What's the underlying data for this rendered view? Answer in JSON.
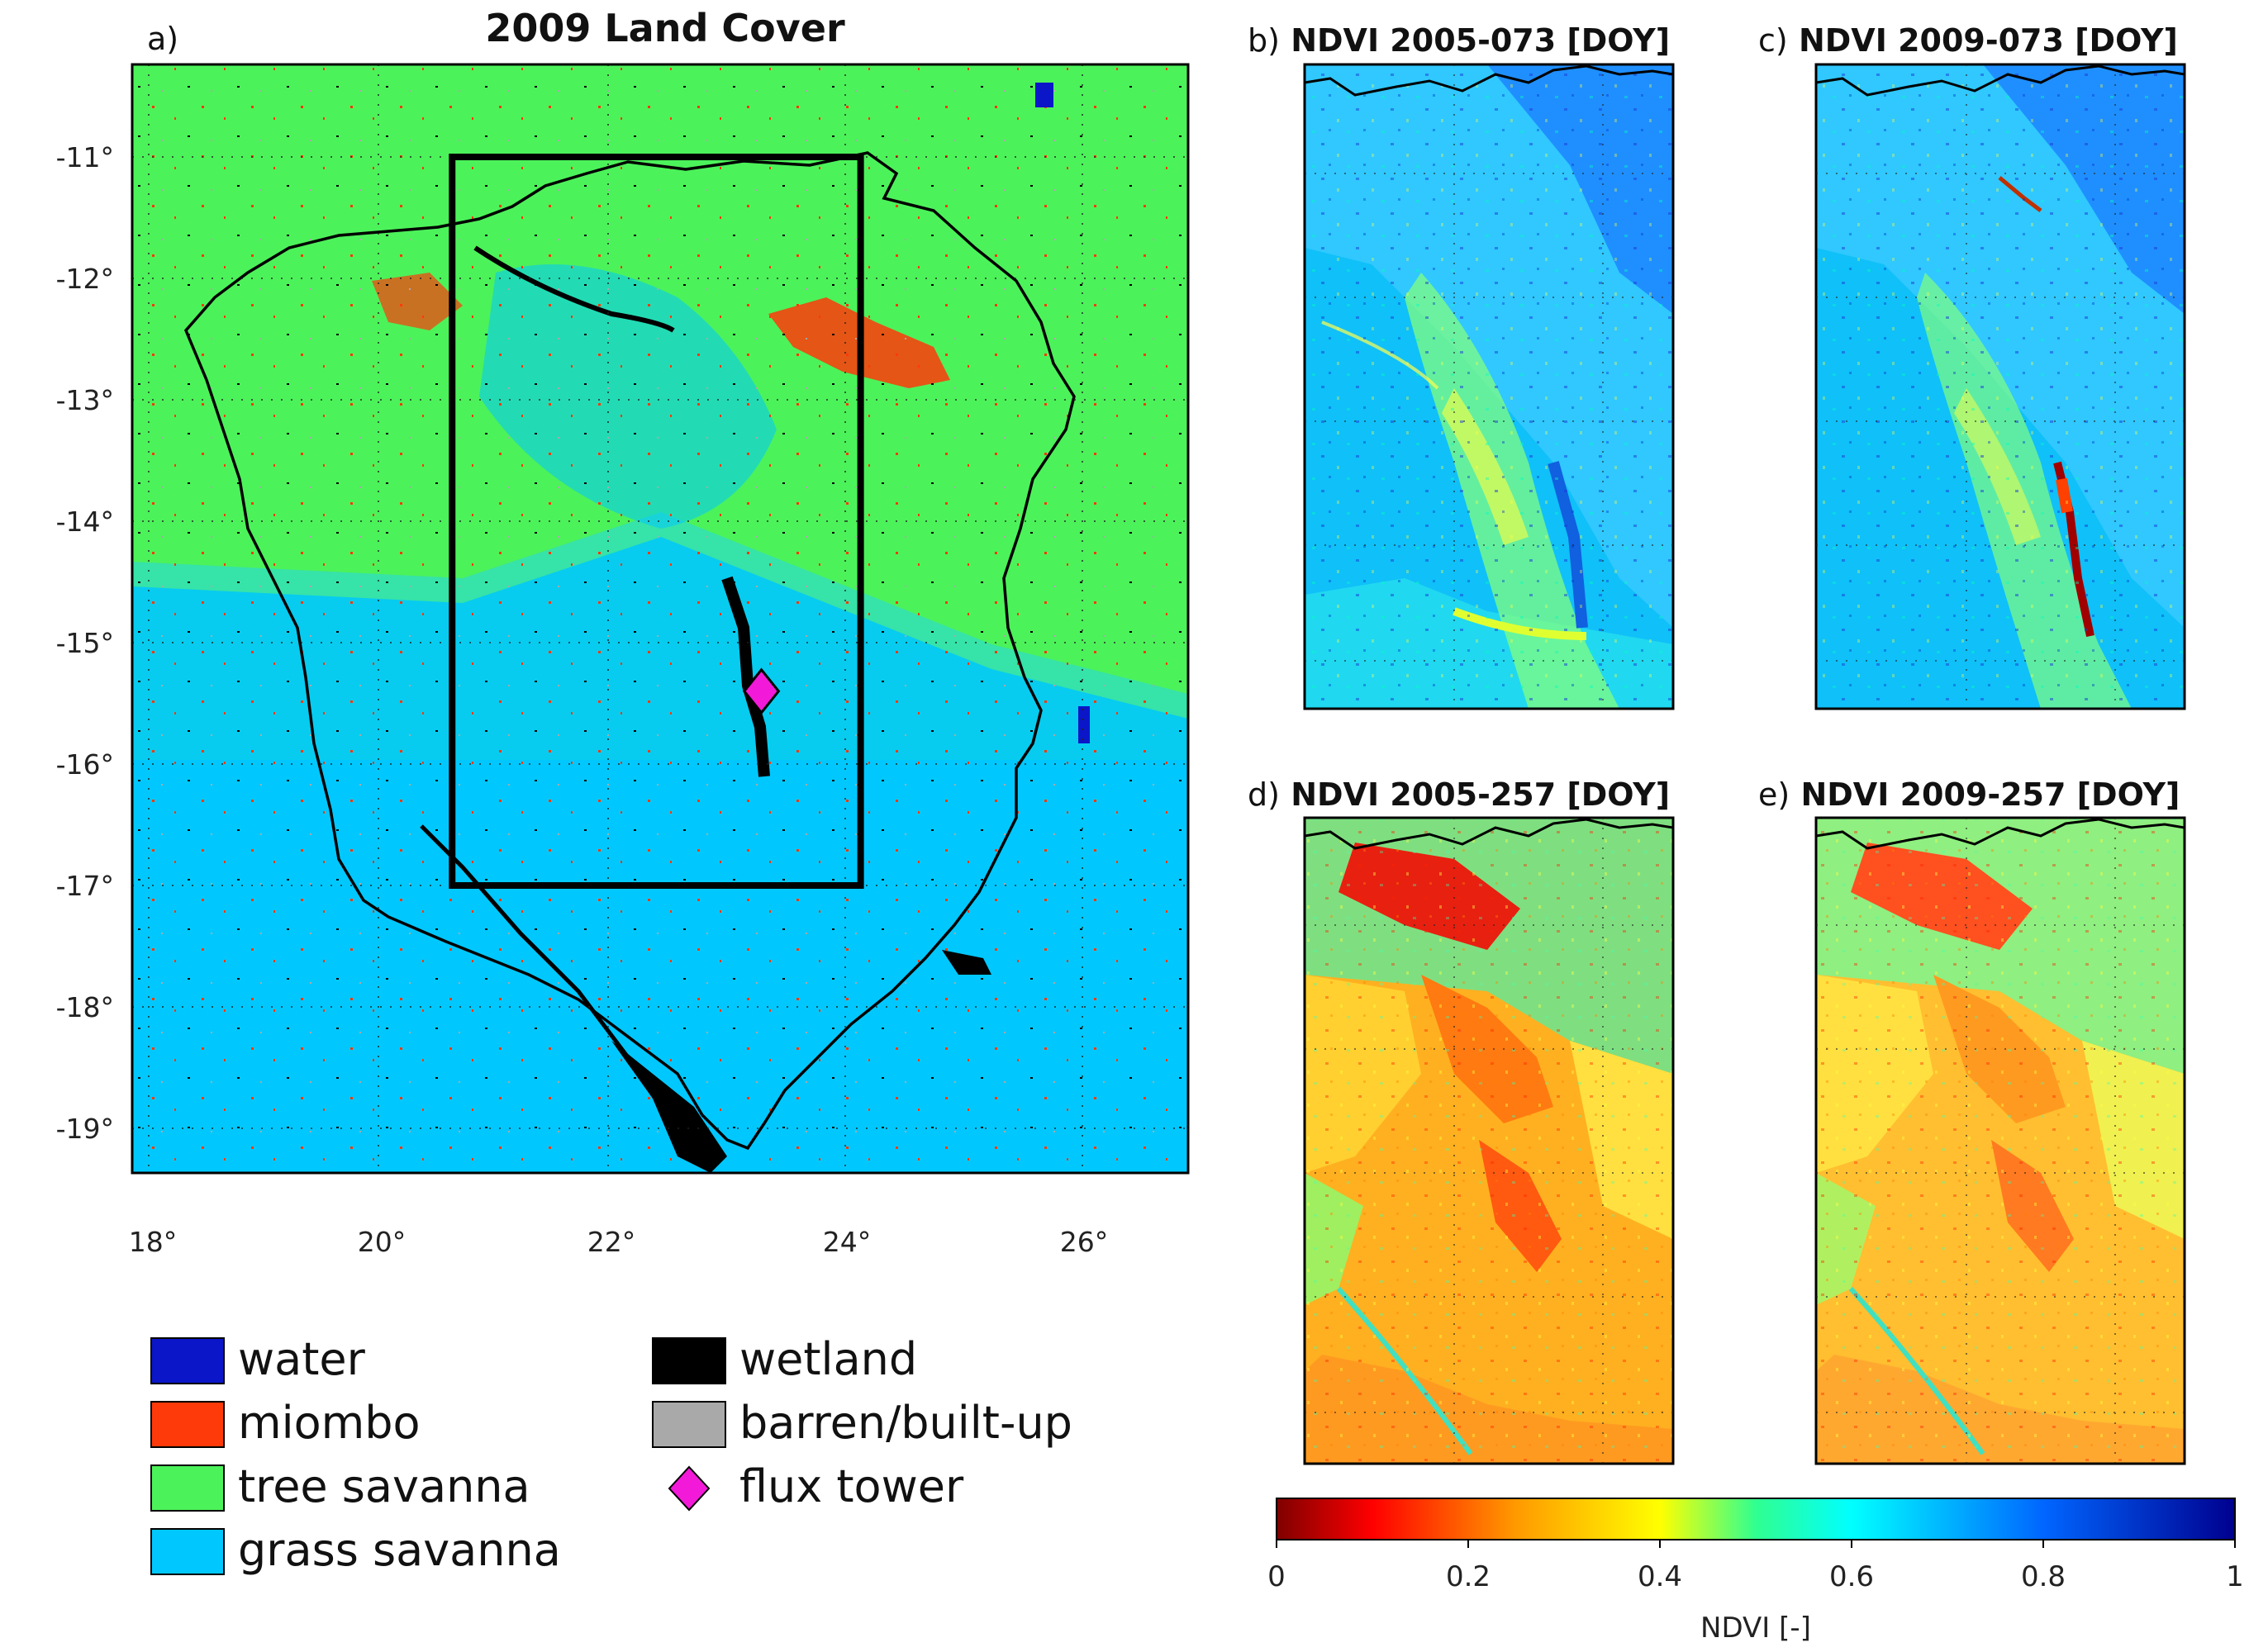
{
  "panel_a": {
    "label": "a)",
    "title": "2009 Land Cover",
    "lat_ticks": [
      "-11°",
      "-12°",
      "-13°",
      "-14°",
      "-15°",
      "-16°",
      "-17°",
      "-18°",
      "-19°"
    ],
    "lon_ticks": [
      "18°",
      "20°",
      "22°",
      "24°",
      "26°"
    ],
    "study_box": {
      "lon_min": 20.6,
      "lon_max": 24.1,
      "lat_min": -17.0,
      "lat_max": -11.0
    },
    "flux_tower": {
      "lon": 23.25,
      "lat": -15.4
    }
  },
  "legend": {
    "items": [
      {
        "label": "water",
        "color": "#0b16c8"
      },
      {
        "label": "miombo",
        "color": "#ff3a0a"
      },
      {
        "label": "tree savanna",
        "color": "#4cf25a"
      },
      {
        "label": "grass savanna",
        "color": "#00c8ff"
      },
      {
        "label": "wetland",
        "color": "#000000"
      },
      {
        "label": "barren/built-up",
        "color": "#a9a9a9"
      },
      {
        "label": "flux tower",
        "color": "#f21ad8"
      }
    ]
  },
  "panels": [
    {
      "label": "b)",
      "title": "NDVI 2005-073 [DOY]"
    },
    {
      "label": "c)",
      "title": "NDVI 2009-073 [DOY]"
    },
    {
      "label": "d)",
      "title": "NDVI 2005-257 [DOY]"
    },
    {
      "label": "e)",
      "title": "NDVI 2009-257 [DOY]"
    }
  ],
  "colorbar": {
    "label": "NDVI [-]",
    "ticks": [
      "0",
      "0.2",
      "0.4",
      "0.6",
      "0.8",
      "1"
    ],
    "range": [
      0,
      1
    ],
    "colors": [
      "#7f0000",
      "#ff0000",
      "#ff9a00",
      "#ffff00",
      "#00ff80",
      "#00ffff",
      "#0066ff",
      "#00008f"
    ]
  }
}
